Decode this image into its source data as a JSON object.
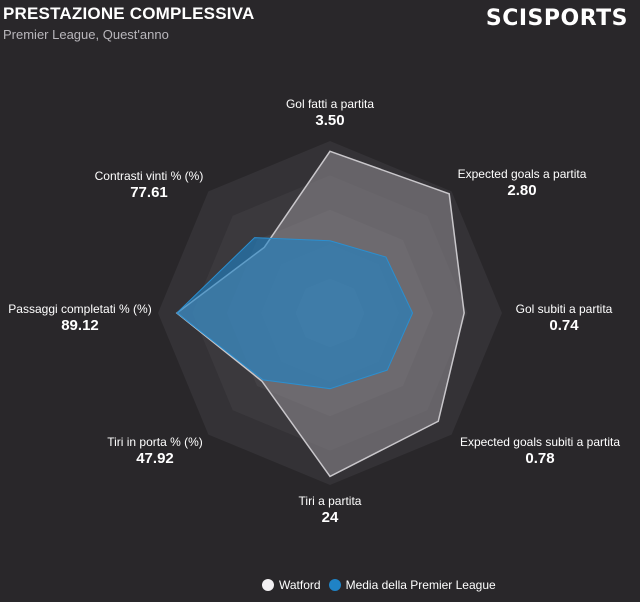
{
  "header": {
    "title": "PRESTAZIONE COMPLESSIVA",
    "subtitle": "Premier League, Quest'anno",
    "logo": "SCISPORTS"
  },
  "legend": {
    "team_label": "Watford",
    "average_label": "Media della Premier League"
  },
  "colors": {
    "team": "#f2f0f2",
    "average": "#1f83c6",
    "rings": "#3a383c",
    "background": "#29272a"
  },
  "chart_data": {
    "type": "radar",
    "title": "PRESTAZIONE COMPLESSIVA",
    "axes": [
      {
        "label": "Gol fatti a partita",
        "value": "3.50",
        "team_level": 0.94,
        "avg_level": 0.42
      },
      {
        "label": "Expected goals a partita",
        "value": "2.80",
        "team_level": 0.98,
        "avg_level": 0.46
      },
      {
        "label": "Gol subiti a partita",
        "value": "0.74",
        "team_level": 0.78,
        "avg_level": 0.48
      },
      {
        "label": "Expected goals subiti a partita",
        "value": "0.78",
        "team_level": 0.89,
        "avg_level": 0.47
      },
      {
        "label": "Tiri a partita",
        "value": "24",
        "team_level": 0.95,
        "avg_level": 0.44
      },
      {
        "label": "Tiri in porta % (%)",
        "value": "47.92",
        "team_level": 0.56,
        "avg_level": 0.55
      },
      {
        "label": "Passaggi completati % (%)",
        "value": "89.12",
        "team_level": 0.89,
        "avg_level": 0.89
      },
      {
        "label": "Contrasti vinti % (%)",
        "value": "77.61",
        "team_level": 0.54,
        "avg_level": 0.62
      }
    ],
    "series": [
      {
        "name": "Watford",
        "key": "team_level"
      },
      {
        "name": "Media della Premier League",
        "key": "avg_level"
      }
    ],
    "rings": 5,
    "range": [
      0,
      1
    ]
  }
}
